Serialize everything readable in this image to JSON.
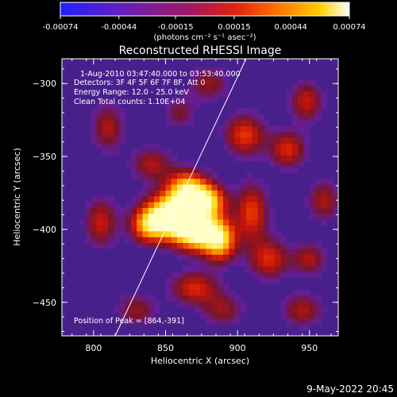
{
  "colorbar": {
    "ticks": [
      -0.00074,
      -0.00044,
      -0.00015,
      0.00015,
      0.00044,
      0.00074
    ],
    "tick_labels": [
      "-0.00074",
      "-0.00044",
      "-0.00015",
      "0.00015",
      "0.00044",
      "0.00074"
    ],
    "units_label": "(photons cm⁻² s⁻¹ asec⁻²)",
    "colors": [
      "#2020ff",
      "#8020b0",
      "#c01020",
      "#ff6000",
      "#ffd000",
      "#ffffff"
    ]
  },
  "chart_data": {
    "type": "heatmap",
    "title": "Reconstructed RHESSI Image",
    "xlabel": "Heliocentric X (arcsec)",
    "ylabel": "Heliocentric Y (arcsec)",
    "xlim": [
      778,
      970
    ],
    "ylim": [
      -473,
      -283
    ],
    "xticks": [
      800,
      850,
      900,
      950
    ],
    "yticks": [
      -300,
      -350,
      -400,
      -450
    ],
    "grid": false,
    "annotations": {
      "time_range": "1-Aug-2010 03:47:40.000 to 03:53:40.000",
      "detectors": "Detectors: 3F 4F 5F 6F 7F 8F, Att 0",
      "energy": "Energy Range: 12.0 - 25.0 keV",
      "method": "Clean    Total counts: 1.10E+04",
      "peak": "Position of Peak = [864,-391]"
    },
    "peak": {
      "x": 864,
      "y": -391
    },
    "limb_line": [
      {
        "x": 815,
        "y": -473
      },
      {
        "x": 906,
        "y": -283
      }
    ],
    "blobs": [
      {
        "x": 855,
        "y": -390,
        "sx": 14,
        "sy": 10,
        "a": 1.2
      },
      {
        "x": 872,
        "y": -402,
        "sx": 12,
        "sy": 9,
        "a": 1.0
      },
      {
        "x": 888,
        "y": -408,
        "sx": 8,
        "sy": 10,
        "a": 0.75
      },
      {
        "x": 865,
        "y": -372,
        "sx": 10,
        "sy": 9,
        "a": 0.85
      },
      {
        "x": 880,
        "y": -380,
        "sx": 9,
        "sy": 8,
        "a": 0.75
      },
      {
        "x": 838,
        "y": -398,
        "sx": 9,
        "sy": 8,
        "a": 0.6
      },
      {
        "x": 910,
        "y": -388,
        "sx": 8,
        "sy": 14,
        "a": 0.55
      },
      {
        "x": 905,
        "y": -335,
        "sx": 10,
        "sy": 10,
        "a": 0.55
      },
      {
        "x": 935,
        "y": -345,
        "sx": 9,
        "sy": 9,
        "a": 0.5
      },
      {
        "x": 948,
        "y": -312,
        "sx": 8,
        "sy": 10,
        "a": 0.45
      },
      {
        "x": 922,
        "y": -420,
        "sx": 10,
        "sy": 10,
        "a": 0.5
      },
      {
        "x": 950,
        "y": -420,
        "sx": 8,
        "sy": 8,
        "a": 0.4
      },
      {
        "x": 840,
        "y": -355,
        "sx": 10,
        "sy": 8,
        "a": 0.4
      },
      {
        "x": 810,
        "y": -330,
        "sx": 8,
        "sy": 12,
        "a": 0.4
      },
      {
        "x": 805,
        "y": -395,
        "sx": 8,
        "sy": 12,
        "a": 0.45
      },
      {
        "x": 870,
        "y": -440,
        "sx": 12,
        "sy": 8,
        "a": 0.5
      },
      {
        "x": 830,
        "y": -455,
        "sx": 10,
        "sy": 8,
        "a": 0.35
      },
      {
        "x": 890,
        "y": -455,
        "sx": 10,
        "sy": 8,
        "a": 0.35
      },
      {
        "x": 960,
        "y": -380,
        "sx": 8,
        "sy": 10,
        "a": 0.4
      },
      {
        "x": 880,
        "y": -300,
        "sx": 10,
        "sy": 8,
        "a": 0.35
      },
      {
        "x": 860,
        "y": -320,
        "sx": 8,
        "sy": 8,
        "a": 0.3
      },
      {
        "x": 945,
        "y": -455,
        "sx": 10,
        "sy": 8,
        "a": 0.4
      }
    ]
  },
  "footer": {
    "timestamp": "9-May-2022 20:45"
  }
}
